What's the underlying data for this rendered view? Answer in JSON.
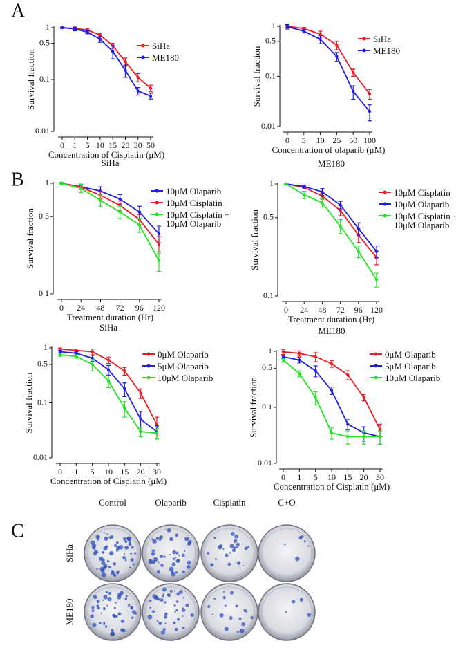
{
  "panels": [
    "A",
    "B",
    "C"
  ],
  "colony_assay": {
    "columns": [
      "Control",
      "Olaparib",
      "Cisplatin",
      "C+O"
    ],
    "rows": [
      "SiHa",
      "ME180"
    ]
  },
  "chart_data": [
    {
      "type": "line",
      "log_y": true,
      "xlabel": "Concentration of Cisplatin (μM)",
      "ylabel": "Survival fraction",
      "categories": [
        "0",
        "1",
        "5",
        "10",
        "15",
        "20",
        "30",
        "50"
      ],
      "ylim": [
        0.01,
        1
      ],
      "yticks": [
        0.01,
        0.1,
        0.5,
        1
      ],
      "series": [
        {
          "name": "SiHa",
          "color": "#ee1c25",
          "values": [
            1,
            0.97,
            0.9,
            0.72,
            0.45,
            0.22,
            0.11,
            0.068
          ],
          "errors": [
            0.03,
            0.05,
            0.05,
            0.06,
            0.05,
            0.04,
            0.02,
            0.01
          ]
        },
        {
          "name": "ME180",
          "color": "#1f1fe0",
          "values": [
            1,
            0.95,
            0.82,
            0.6,
            0.35,
            0.15,
            0.06,
            0.048
          ],
          "errors": [
            0.03,
            0.08,
            0.06,
            0.08,
            0.1,
            0.04,
            0.01,
            0.006
          ]
        }
      ]
    },
    {
      "type": "line",
      "log_y": true,
      "xlabel": "Concentration of olaparib (μM)",
      "ylabel": "Survival fraction",
      "categories": [
        "0",
        "5",
        "10",
        "25",
        "50",
        "100"
      ],
      "ylim": [
        0.01,
        1
      ],
      "yticks": [
        0.01,
        0.1,
        0.5,
        1
      ],
      "series": [
        {
          "name": "SiHa",
          "color": "#ee1c25",
          "values": [
            1,
            0.9,
            0.7,
            0.42,
            0.12,
            0.045
          ],
          "errors": [
            0.05,
            0.05,
            0.1,
            0.08,
            0.02,
            0.01
          ]
        },
        {
          "name": "ME180",
          "color": "#1f1fe0",
          "values": [
            0.98,
            0.8,
            0.55,
            0.25,
            0.05,
            0.02
          ],
          "errors": [
            0.1,
            0.06,
            0.1,
            0.05,
            0.015,
            0.007
          ]
        }
      ]
    },
    {
      "type": "line",
      "log_y": true,
      "title": "SiHa",
      "xlabel": "Treatment duration (Hr)",
      "ylabel": "Survival fraction",
      "categories": [
        "0",
        "24",
        "48",
        "72",
        "96",
        "120"
      ],
      "ylim": [
        0.1,
        1
      ],
      "yticks": [
        0.1,
        0.5,
        1
      ],
      "series": [
        {
          "name": "10μM Olaparib",
          "color": "#1f1fe0",
          "values": [
            1,
            0.93,
            0.85,
            0.72,
            0.55,
            0.35
          ],
          "errors": [
            0.02,
            0.05,
            0.08,
            0.07,
            0.07,
            0.06
          ]
        },
        {
          "name": "10μM Cisplatin",
          "color": "#ee1c25",
          "values": [
            1,
            0.92,
            0.78,
            0.63,
            0.47,
            0.28
          ],
          "errors": [
            0.02,
            0.04,
            0.06,
            0.06,
            0.05,
            0.05
          ]
        },
        {
          "name": "10μM Cisplatin + 10μM Olaparib",
          "color": "#22e622",
          "values": [
            1,
            0.9,
            0.7,
            0.55,
            0.42,
            0.2
          ],
          "errors": [
            0.02,
            0.08,
            0.08,
            0.07,
            0.06,
            0.04
          ]
        }
      ]
    },
    {
      "type": "line",
      "log_y": true,
      "title": "ME180",
      "xlabel": "Treatment duration (Hr)",
      "ylabel": "Survival fraction",
      "categories": [
        "0",
        "24",
        "48",
        "72",
        "96",
        "120"
      ],
      "ylim": [
        0.1,
        1
      ],
      "yticks": [
        0.1,
        0.5,
        1
      ],
      "series": [
        {
          "name": "10μM Cisplatin",
          "color": "#ee1c25",
          "values": [
            1,
            0.93,
            0.78,
            0.58,
            0.35,
            0.22
          ],
          "errors": [
            0.01,
            0.03,
            0.05,
            0.06,
            0.05,
            0.03
          ]
        },
        {
          "name": "10μM Olaparib",
          "color": "#1f1fe0",
          "values": [
            1,
            0.95,
            0.85,
            0.65,
            0.4,
            0.25
          ],
          "errors": [
            0.01,
            0.03,
            0.06,
            0.05,
            0.05,
            0.03
          ]
        },
        {
          "name": "10μM Cisplatin + 10μM Olaparib",
          "color": "#22e622",
          "values": [
            1,
            0.8,
            0.68,
            0.42,
            0.25,
            0.14
          ],
          "errors": [
            0.01,
            0.06,
            0.06,
            0.06,
            0.03,
            0.02
          ]
        }
      ]
    },
    {
      "type": "line",
      "log_y": true,
      "title": "SiHa",
      "xlabel": "Concentration of Cisplatin (μM)",
      "ylabel": "Survival fraction",
      "categories": [
        "0",
        "1",
        "5",
        "10",
        "15",
        "20",
        "30"
      ],
      "ylim": [
        0.01,
        1
      ],
      "yticks": [
        0.01,
        0.1,
        0.5,
        1
      ],
      "series": [
        {
          "name": "0μM Olaparib",
          "color": "#ee1c25",
          "values": [
            0.95,
            0.9,
            0.85,
            0.6,
            0.38,
            0.15,
            0.04
          ],
          "errors": [
            0.05,
            0.05,
            0.1,
            0.08,
            0.06,
            0.03,
            0.015
          ]
        },
        {
          "name": "5μM Olaparib",
          "color": "#1f1fe0",
          "values": [
            0.85,
            0.8,
            0.65,
            0.4,
            0.18,
            0.05,
            0.03
          ],
          "errors": [
            0.05,
            0.05,
            0.08,
            0.08,
            0.05,
            0.02,
            0.008
          ]
        },
        {
          "name": "10μM Olaparib",
          "color": "#22e622",
          "values": [
            0.75,
            0.7,
            0.5,
            0.25,
            0.08,
            0.03,
            0.028
          ],
          "errors": [
            0.05,
            0.05,
            0.12,
            0.06,
            0.025,
            0.006,
            0.006
          ]
        }
      ]
    },
    {
      "type": "line",
      "log_y": true,
      "title": "ME180",
      "xlabel": "Concentration of Cisplatin (μM)",
      "ylabel": "Survival fraction",
      "categories": [
        "0",
        "1",
        "5",
        "10",
        "15",
        "20",
        "30"
      ],
      "ylim": [
        0.01,
        1
      ],
      "yticks": [
        0.01,
        0.1,
        0.5,
        1
      ],
      "series": [
        {
          "name": "0μM Olaparib",
          "color": "#ee1c25",
          "values": [
            0.98,
            0.92,
            0.8,
            0.6,
            0.38,
            0.15,
            0.04
          ],
          "errors": [
            0.1,
            0.1,
            0.15,
            0.08,
            0.07,
            0.02,
            0.01
          ]
        },
        {
          "name": "5μM Olaparib",
          "color": "#1f1fe0",
          "values": [
            0.8,
            0.7,
            0.45,
            0.2,
            0.05,
            0.035,
            0.03
          ],
          "errors": [
            0.05,
            0.08,
            0.1,
            0.03,
            0.01,
            0.01,
            0.008
          ]
        },
        {
          "name": "10μM Olaparib",
          "color": "#22e622",
          "values": [
            0.7,
            0.4,
            0.15,
            0.035,
            0.03,
            0.03,
            0.03
          ],
          "errors": [
            0.06,
            0.05,
            0.04,
            0.008,
            0.008,
            0.008,
            0.008
          ]
        }
      ]
    }
  ]
}
